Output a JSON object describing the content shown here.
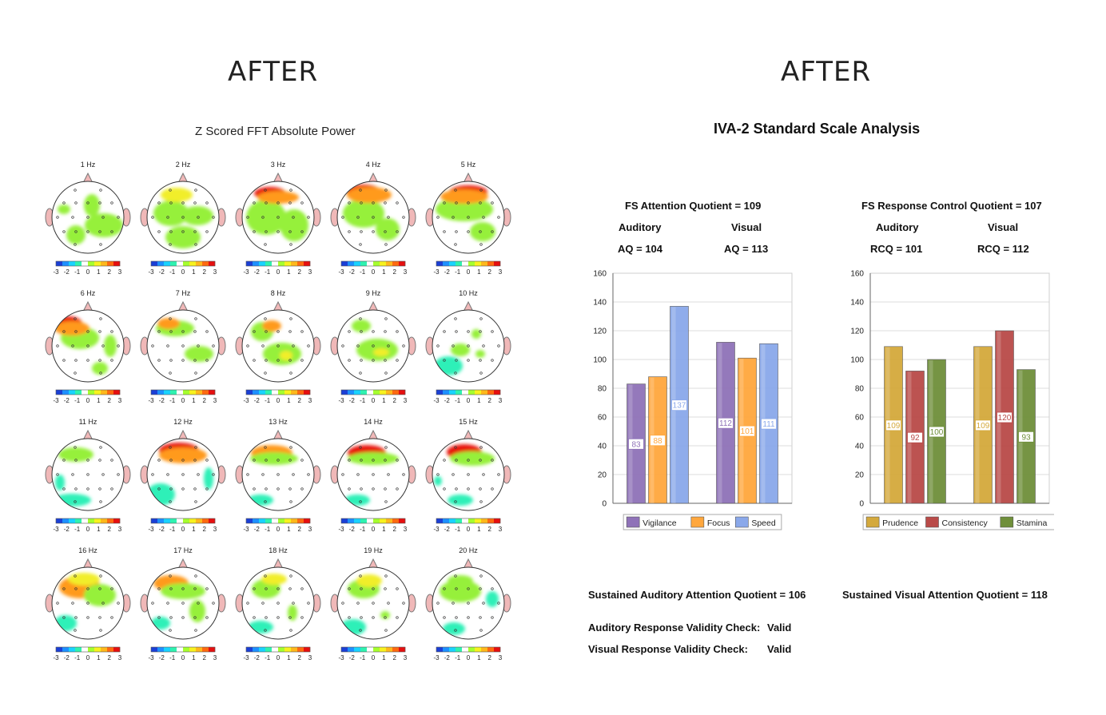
{
  "left_heading": "AFTER",
  "right_heading": "AFTER",
  "fft": {
    "title": "Z Scored FFT Absolute Power",
    "maps": [
      {
        "label": "1 Hz"
      },
      {
        "label": "2 Hz"
      },
      {
        "label": "3 Hz"
      },
      {
        "label": "4 Hz"
      },
      {
        "label": "5 Hz"
      },
      {
        "label": "6 Hz"
      },
      {
        "label": "7 Hz"
      },
      {
        "label": "8 Hz"
      },
      {
        "label": "9 Hz"
      },
      {
        "label": "10 Hz"
      },
      {
        "label": "11 Hz"
      },
      {
        "label": "12 Hz"
      },
      {
        "label": "13 Hz"
      },
      {
        "label": "14 Hz"
      },
      {
        "label": "15 Hz"
      },
      {
        "label": "16 Hz"
      },
      {
        "label": "17 Hz"
      },
      {
        "label": "18 Hz"
      },
      {
        "label": "19 Hz"
      },
      {
        "label": "20 Hz"
      }
    ],
    "scale_ticks": [
      "-3",
      "-2",
      "-1",
      "0",
      "1",
      "2",
      "3"
    ],
    "scale_colors": [
      "#1b3fd6",
      "#1e90ff",
      "#19d3ff",
      "#2ff2b0",
      "#ffffff",
      "#a6ff2e",
      "#f7f21f",
      "#ffb81c",
      "#ff6a10",
      "#e60f0f"
    ]
  },
  "iva": {
    "title": "IVA-2 Standard Scale Analysis",
    "attention": {
      "quotient": "FS Attention Quotient = 109",
      "aud_label": "Auditory",
      "vis_label": "Visual",
      "aud_value": "AQ = 104",
      "vis_value": "AQ = 113"
    },
    "response": {
      "quotient": "FS Response Control Quotient = 107",
      "aud_label": "Auditory",
      "vis_label": "Visual",
      "aud_value": "RCQ = 101",
      "vis_value": "RCQ = 112"
    },
    "sustained_auditory": "Sustained Auditory Attention Quotient = 106",
    "sustained_visual": "Sustained Visual Attention Quotient = 118",
    "aud_validity_label": "Auditory Response Validity Check:",
    "aud_validity_value": "Valid",
    "vis_validity_label": "Visual Response Validity Check:",
    "vis_validity_value": "Valid"
  },
  "chart_data": [
    {
      "type": "bar",
      "categories": [
        "Auditory",
        "Visual"
      ],
      "series": [
        {
          "name": "Vigilance",
          "values": [
            83,
            112
          ],
          "color": "#8f72b8"
        },
        {
          "name": "Focus",
          "values": [
            88,
            101
          ],
          "color": "#ffa73d"
        },
        {
          "name": "Speed",
          "values": [
            137,
            111
          ],
          "color": "#8aa8ea"
        }
      ],
      "ylim": [
        0,
        160
      ],
      "yticks": [
        "0",
        "20",
        "40",
        "60",
        "80",
        "100",
        "120",
        "140",
        "160"
      ],
      "grid": true,
      "legend": "bottom"
    },
    {
      "type": "bar",
      "categories": [
        "Auditory",
        "Visual"
      ],
      "series": [
        {
          "name": "Prudence",
          "values": [
            109,
            109
          ],
          "color": "#d4a93c"
        },
        {
          "name": "Consistency",
          "values": [
            92,
            120
          ],
          "color": "#b94a48"
        },
        {
          "name": "Stamina",
          "values": [
            100,
            93
          ],
          "color": "#6f8f3a"
        }
      ],
      "ylim": [
        0,
        160
      ],
      "yticks": [
        "0",
        "20",
        "40",
        "60",
        "80",
        "100",
        "120",
        "140",
        "160"
      ],
      "grid": true,
      "legend": "bottom"
    }
  ]
}
